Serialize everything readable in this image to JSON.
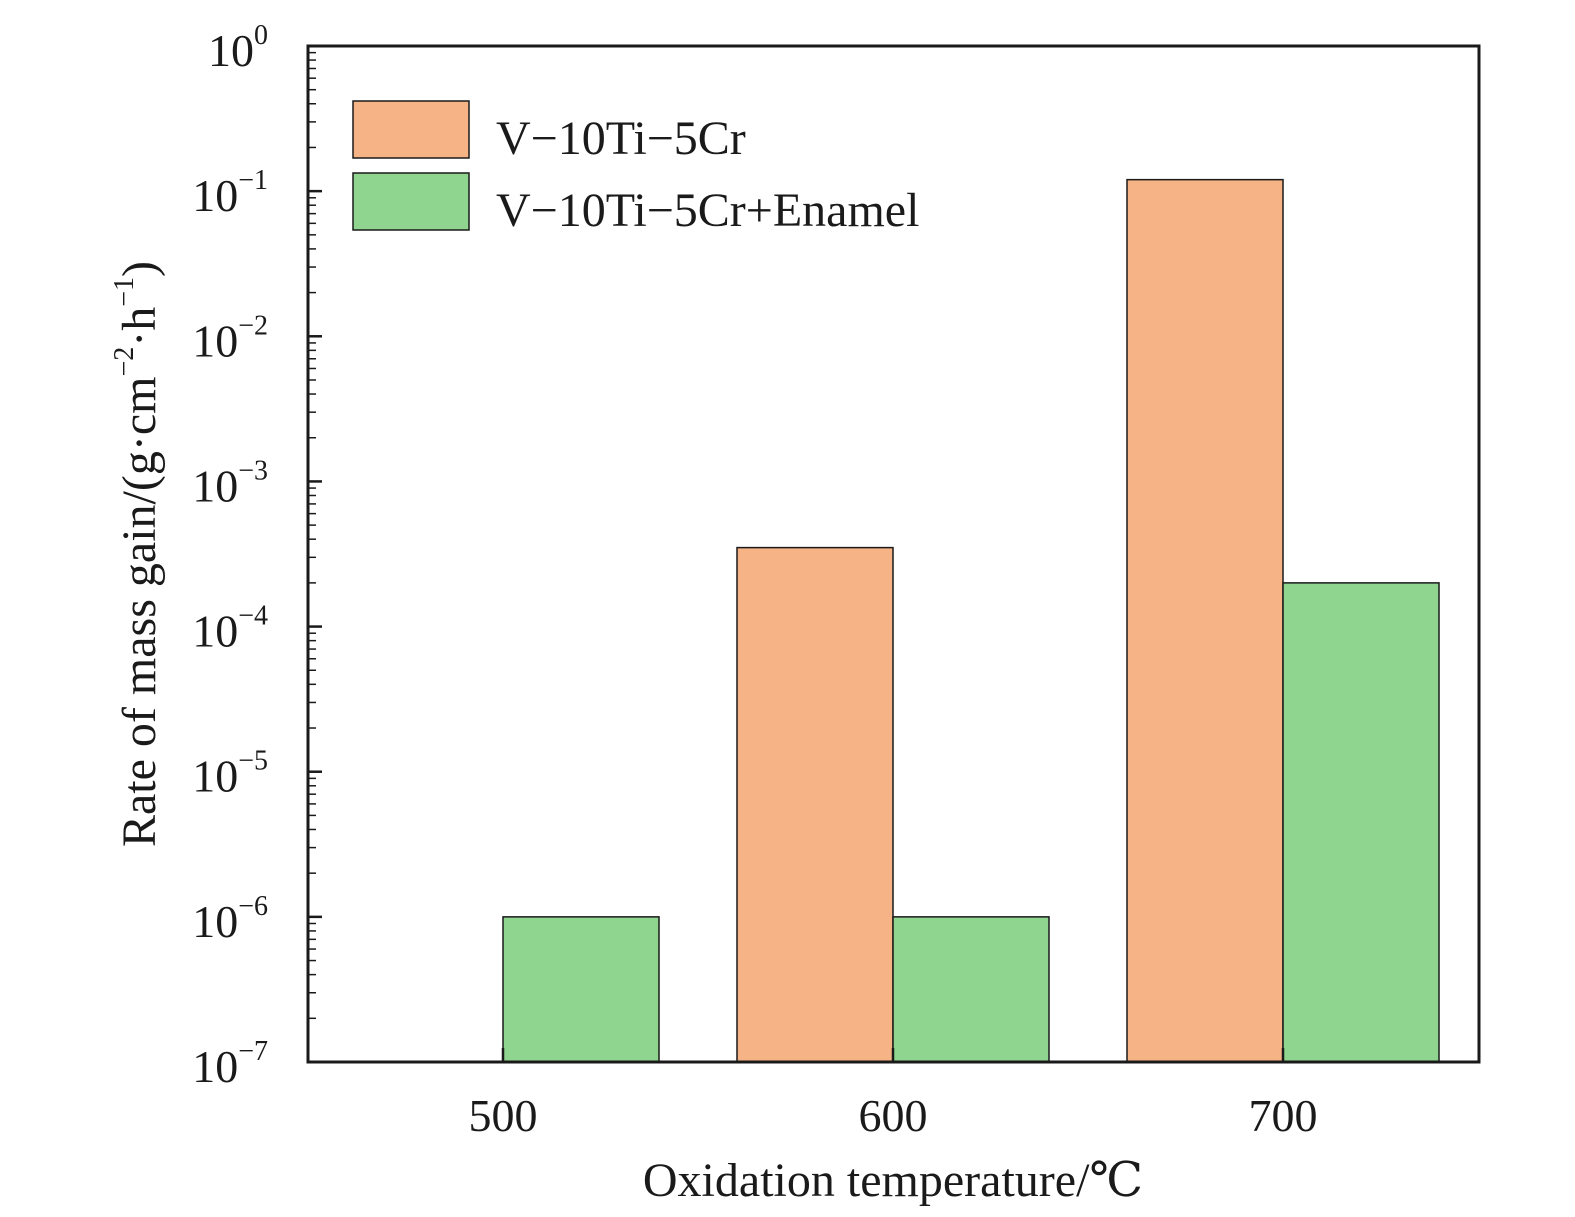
{
  "chart_data": {
    "type": "bar",
    "categories": [
      "500",
      "600",
      "700"
    ],
    "series": [
      {
        "name": "V−10Ti−5Cr",
        "values": [
          null,
          0.00035,
          0.12
        ],
        "color": "#f5b386"
      },
      {
        "name": "V−10Ti−5Cr+Enamel",
        "values": [
          1e-06,
          1e-06,
          0.0002
        ],
        "color": "#8fd48f"
      }
    ],
    "xlabel": "Oxidation temperature/℃",
    "ylabel_main": "Rate of mass gain/(g·cm",
    "ylabel_sup1": "−2",
    "ylabel_mid": "·h",
    "ylabel_sup2": "−1",
    "ylabel_end": ")",
    "yscale": "log",
    "ylim": [
      1e-07,
      1
    ],
    "y_ticks": [
      {
        "base": "10",
        "exp": "0"
      },
      {
        "base": "10",
        "exp": "−1"
      },
      {
        "base": "10",
        "exp": "−2"
      },
      {
        "base": "10",
        "exp": "−3"
      },
      {
        "base": "10",
        "exp": "−4"
      },
      {
        "base": "10",
        "exp": "−5"
      },
      {
        "base": "10",
        "exp": "−6"
      },
      {
        "base": "10",
        "exp": "−7"
      }
    ],
    "legend_position": "top-left",
    "grid": false
  }
}
